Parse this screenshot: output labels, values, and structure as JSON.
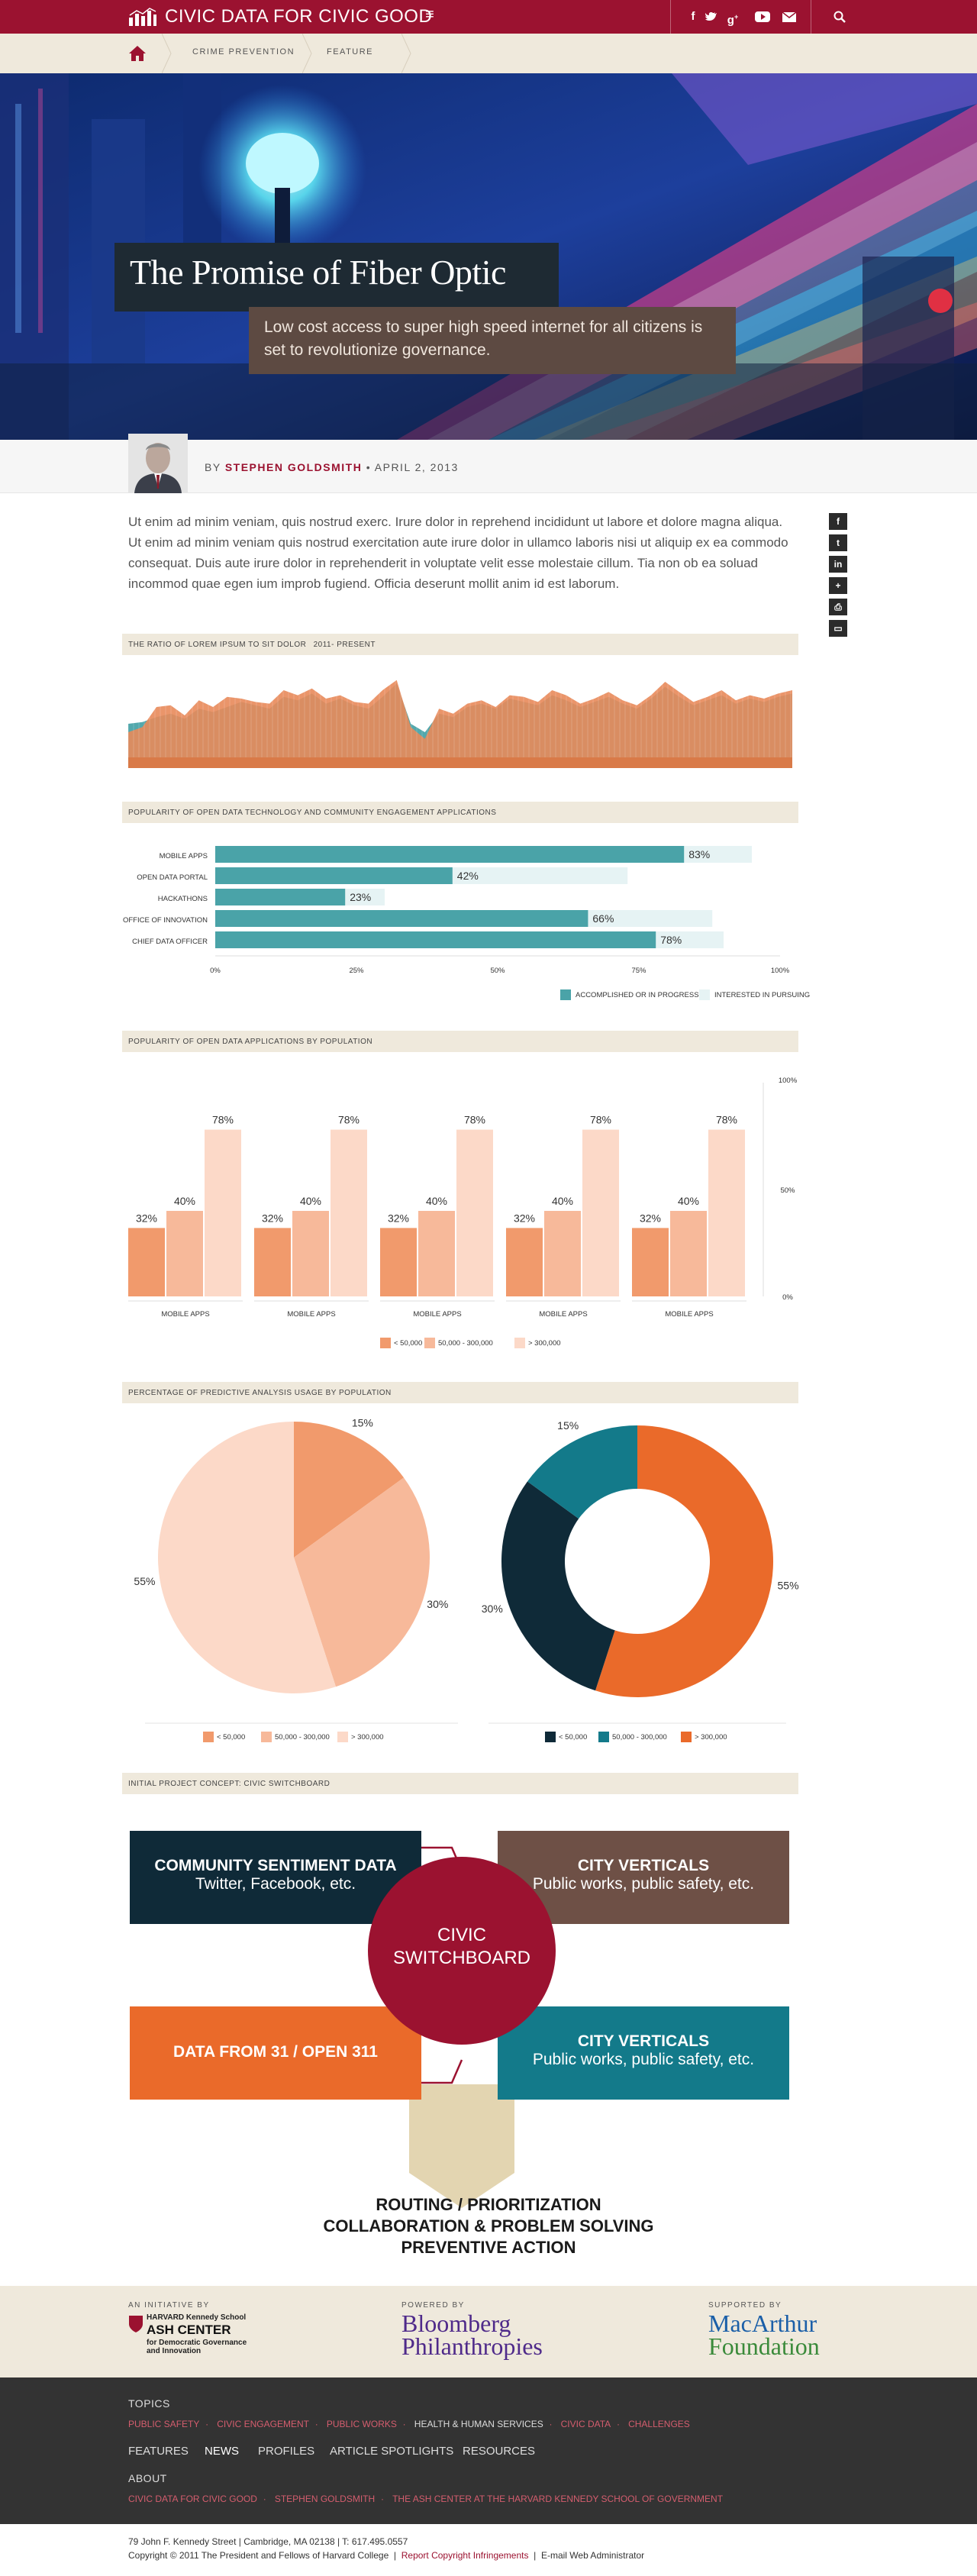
{
  "header": {
    "brand": "CIVIC DATA FOR CIVIC GOOD",
    "menu_icon": "hamburger-icon",
    "social": [
      "f",
      "t",
      "g+",
      "youtube",
      "mail"
    ],
    "search_icon": "search-icon"
  },
  "breadcrumb": {
    "home_icon": "home-icon",
    "items": [
      "CRIME PREVENTION",
      "FEATURE"
    ]
  },
  "hero": {
    "title": "The Promise of Fiber Optic",
    "subtitle": "Low cost access to super high speed internet for all citizens is set to revolutionize governance."
  },
  "byline": {
    "prefix": "BY",
    "author": "STEPHEN GOLDSMITH",
    "separator": "•",
    "date": "APRIL 2, 2013"
  },
  "article": {
    "body": "Ut enim ad minim veniam, quis nostrud exerc. Irure dolor in reprehend incididunt ut labore et dolore magna aliqua. Ut enim ad minim veniam quis nostrud exercitation aute irure dolor in ullamco laboris nisi ut aliquip ex ea commodo consequat. Duis aute irure dolor in reprehenderit in voluptate velit esse molestaie cillum. Tia non ob ea soluad incommod quae egen ium improb fugiend. Officia deserunt mollit anim id est laborum."
  },
  "share": [
    "f",
    "t",
    "in",
    "+",
    "print",
    "comment"
  ],
  "colors": {
    "brand_red": "#9b1230",
    "teal": "#4aa3a8",
    "orange": "#e8895a",
    "dark_navy": "#0f2a38",
    "brown": "#6e5046",
    "bright_orange": "#ea6a2a",
    "bright_teal": "#137a8a"
  },
  "chart_data": [
    {
      "type": "area",
      "title": "THE RATIO OF LOREM IPSUM TO SIT DOLOR",
      "subtitle": "2011- PRESENT",
      "series": [
        {
          "values": [
            40,
            42,
            48,
            52,
            46,
            58,
            54,
            60,
            66,
            62,
            58,
            72,
            68,
            76,
            64,
            70,
            62,
            58,
            72,
            88,
            40,
            30,
            52,
            48,
            60,
            64,
            58,
            70,
            66,
            62,
            74,
            68,
            60,
            66,
            72,
            64,
            58,
            70,
            84,
            72,
            62,
            68,
            74,
            64,
            70,
            66,
            72,
            76
          ]
        },
        {
          "values": [
            30,
            36,
            60,
            62,
            50,
            68,
            60,
            72,
            70,
            66,
            64,
            80,
            74,
            82,
            70,
            74,
            66,
            64,
            80,
            92,
            36,
            22,
            58,
            52,
            64,
            68,
            60,
            74,
            72,
            66,
            80,
            74,
            64,
            70,
            78,
            68,
            62,
            74,
            90,
            78,
            66,
            72,
            80,
            68,
            74,
            70,
            76,
            80
          ]
        }
      ]
    },
    {
      "type": "bar",
      "title": "POPULARITY OF OPEN DATA TECHNOLOGY AND COMMUNITY ENGAGEMENT APPLICATIONS",
      "categories": [
        "MOBILE APPS",
        "OPEN DATA PORTAL",
        "HACKATHONS",
        "OFFICE OF INNOVATION",
        "CHIEF DATA OFFICER"
      ],
      "series": [
        {
          "name": "ACCOMPLISHED OR IN PROGRESS",
          "values": [
            83,
            42,
            23,
            66,
            78
          ]
        },
        {
          "name": "INTERESTED IN PURSUING",
          "values": [
            95,
            73,
            30,
            88,
            90
          ]
        }
      ],
      "xticks": [
        "0%",
        "25%",
        "50%",
        "75%",
        "100%"
      ],
      "xlim": [
        0,
        100
      ]
    },
    {
      "type": "bar",
      "title": "POPULARITY OF OPEN DATA APPLICATIONS BY POPULATION",
      "categories": [
        "MOBILE APPS",
        "MOBILE APPS",
        "MOBILE APPS",
        "MOBILE APPS",
        "MOBILE APPS"
      ],
      "series": [
        {
          "name": "< 50,000",
          "values": [
            32,
            32,
            32,
            32,
            32
          ]
        },
        {
          "name": "50,000 - 300,000",
          "values": [
            40,
            40,
            40,
            40,
            40
          ]
        },
        {
          "name": "> 300,000",
          "values": [
            78,
            78,
            78,
            78,
            78
          ]
        }
      ],
      "yticks": [
        "100%",
        "50%",
        "0%"
      ],
      "ylim": [
        0,
        100
      ]
    },
    {
      "type": "pie",
      "title": "PERCENTAGE OF PREDICTIVE ANALYSIS USAGE BY POPULATION",
      "categories": [
        "< 50,000",
        "50,000 - 300,000",
        "> 300,000"
      ],
      "values": [
        15,
        30,
        55
      ]
    },
    {
      "type": "pie",
      "categories": [
        "< 50,000",
        "50,000 - 300,000",
        "> 300,000"
      ],
      "values": [
        30,
        15,
        55
      ]
    }
  ],
  "pie_labels": {
    "p15": "15%",
    "p30": "30%",
    "p55": "55%"
  },
  "diagram": {
    "section_title": "INITIAL PROJECT CONCEPT: CIVIC SWITCHBOARD",
    "box1_title": "COMMUNITY SENTIMENT DATA",
    "box1_sub": "Twitter, Facebook, etc.",
    "box2_title": "CITY VERTICALS",
    "box2_sub": "Public works, public safety, etc.",
    "box3_title": "DATA FROM 31 / OPEN 311",
    "box4_title": "CITY VERTICALS",
    "box4_sub": "Public works, public safety, etc.",
    "center_line1": "CIVIC",
    "center_line2": "SWITCHBOARD",
    "outcome1": "ROUTING / PRIORITIZATION",
    "outcome2": "COLLABORATION & PROBLEM SOLVING",
    "outcome3": "PREVENTIVE ACTION"
  },
  "sponsors": {
    "initiative_label": "AN INITIATIVE BY",
    "initiative_school": "HARVARD Kennedy School",
    "initiative_name": "ASH CENTER",
    "initiative_desc1": "for Democratic Governance",
    "initiative_desc2": "and Innovation",
    "powered_label": "POWERED BY",
    "powered_line1": "Bloomberg",
    "powered_line2": "Philanthropies",
    "supported_label": "SUPPORTED BY",
    "supported_line1": "MacArthur",
    "supported_line2": "Foundation"
  },
  "footer": {
    "topics_heading": "TOPICS",
    "topics": [
      "PUBLIC SAFETY",
      "CIVIC ENGAGEMENT",
      "PUBLIC WORKS",
      "HEALTH & HUMAN SERVICES",
      "CIVIC DATA",
      "CHALLENGES"
    ],
    "nav": [
      "FEATURES",
      "NEWS",
      "PROFILES",
      "ARTICLE SPOTLIGHTS",
      "RESOURCES"
    ],
    "about_heading": "ABOUT",
    "about": [
      "CIVIC DATA FOR CIVIC GOOD",
      "STEPHEN GOLDSMITH",
      "THE ASH CENTER AT THE HARVARD KENNEDY SCHOOL OF GOVERNMENT"
    ],
    "address": "79 John F. Kennedy Street | Cambridge, MA 02138 |  T: 617.495.0557",
    "copyright": "Copyright © 2011 The President and Fellows of Harvard College",
    "report": "Report Copyright Infringements",
    "email": "E-mail Web Administrator"
  }
}
